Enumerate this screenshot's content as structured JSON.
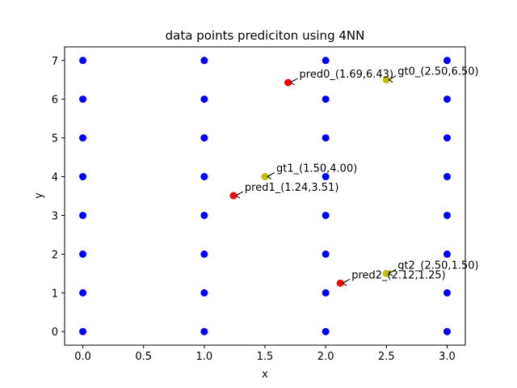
{
  "chart_data": {
    "type": "scatter",
    "title": "data points prediciton using 4NN",
    "xlabel": "x",
    "ylabel": "y",
    "xlim": [
      -0.15,
      3.15
    ],
    "ylim": [
      -0.35,
      7.35
    ],
    "xticks": [
      0.0,
      0.5,
      1.0,
      1.5,
      2.0,
      2.5,
      3.0
    ],
    "xtick_labels": [
      "0.0",
      "0.5",
      "1.0",
      "1.5",
      "2.0",
      "2.5",
      "3.0"
    ],
    "yticks": [
      0,
      1,
      2,
      3,
      4,
      5,
      6,
      7
    ],
    "ytick_labels": [
      "0",
      "1",
      "2",
      "3",
      "4",
      "5",
      "6",
      "7"
    ],
    "grid": false,
    "series": [
      {
        "color": "#0000ff",
        "points": [
          [
            0,
            0
          ],
          [
            0,
            1
          ],
          [
            0,
            2
          ],
          [
            0,
            3
          ],
          [
            0,
            4
          ],
          [
            0,
            5
          ],
          [
            0,
            6
          ],
          [
            0,
            7
          ],
          [
            1,
            0
          ],
          [
            1,
            1
          ],
          [
            1,
            2
          ],
          [
            1,
            3
          ],
          [
            1,
            4
          ],
          [
            1,
            5
          ],
          [
            1,
            6
          ],
          [
            1,
            7
          ],
          [
            2,
            0
          ],
          [
            2,
            1
          ],
          [
            2,
            2
          ],
          [
            2,
            3
          ],
          [
            2,
            4
          ],
          [
            2,
            5
          ],
          [
            2,
            6
          ],
          [
            2,
            7
          ],
          [
            3,
            0
          ],
          [
            3,
            1
          ],
          [
            3,
            2
          ],
          [
            3,
            3
          ],
          [
            3,
            4
          ],
          [
            3,
            5
          ],
          [
            3,
            6
          ],
          [
            3,
            7
          ]
        ]
      },
      {
        "color": "#bfbf00",
        "points": [
          [
            2.5,
            6.5
          ],
          [
            1.5,
            4.0
          ],
          [
            2.5,
            1.5
          ]
        ]
      },
      {
        "color": "#ff0000",
        "points": [
          [
            1.69,
            6.43
          ],
          [
            1.24,
            3.51
          ],
          [
            2.12,
            1.25
          ]
        ]
      }
    ],
    "annotations": [
      {
        "text": "gt0_(2.50,6.50)",
        "x": 2.5,
        "y": 6.5,
        "color": "#bfbf00"
      },
      {
        "text": "pred0_(1.69,6.43)",
        "x": 1.69,
        "y": 6.43,
        "color": "#ff0000"
      },
      {
        "text": "gt1_(1.50,4.00)",
        "x": 1.5,
        "y": 4.0,
        "color": "#bfbf00"
      },
      {
        "text": "pred1_(1.24,3.51)",
        "x": 1.24,
        "y": 3.51,
        "color": "#ff0000"
      },
      {
        "text": "gt2_(2.50,1.50)",
        "x": 2.5,
        "y": 1.5,
        "color": "#bfbf00"
      },
      {
        "text": "pred2_(2.12,1.25)",
        "x": 2.12,
        "y": 1.25,
        "color": "#ff0000"
      }
    ]
  }
}
